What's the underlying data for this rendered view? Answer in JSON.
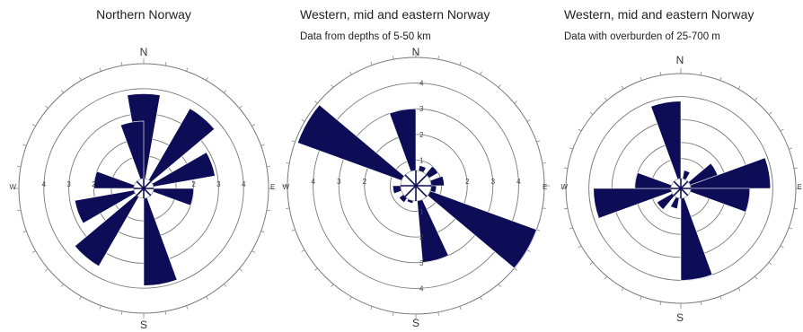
{
  "colors": {
    "petal": "#0d0d57",
    "ring": "#7a7a7a",
    "text": "#222222"
  },
  "chart_data": [
    {
      "type": "rose",
      "title": "Northern Norway",
      "subtitle": "",
      "cardinals": {
        "n": "N",
        "s": "S",
        "e": "E",
        "w": "W"
      },
      "ring_labels_h": [
        "4",
        "3",
        "2",
        "2",
        "3",
        "4"
      ],
      "ring_labels_v": [],
      "rings": [
        1.3,
        2,
        3,
        4
      ],
      "rmax": 5,
      "bin_width_deg": 20,
      "petals": [
        {
          "azimuth": 0,
          "r": 3.8
        },
        {
          "azimuth": 40,
          "r": 3.7
        },
        {
          "azimuth": 70,
          "r": 2.9
        },
        {
          "azimuth": 100,
          "r": 2.0
        },
        {
          "azimuth": 170,
          "r": 3.9
        },
        {
          "azimuth": 220,
          "r": 3.6
        },
        {
          "azimuth": 250,
          "r": 2.8
        },
        {
          "azimuth": 280,
          "r": 2.0
        },
        {
          "azimuth": 350,
          "r": 2.7
        }
      ]
    },
    {
      "type": "rose",
      "title": "Western, mid and eastern Norway",
      "subtitle": "Data from depths of 5-50 km",
      "cardinals": {
        "n": "N",
        "s": "S",
        "e": "E",
        "w": "W"
      },
      "ring_labels_h": [
        "4",
        "3",
        "2",
        "2",
        "3",
        "4"
      ],
      "ring_labels_v": [
        "4",
        "3",
        "2",
        "1",
        "1",
        "2",
        "3",
        "4"
      ],
      "rings": [
        1,
        2,
        3,
        4
      ],
      "rmax": 5,
      "bin_width_deg": 20,
      "petals": [
        {
          "azimuth": 350,
          "r": 3.0
        },
        {
          "azimuth": 300,
          "r": 4.9
        },
        {
          "azimuth": 120,
          "r": 5.0
        },
        {
          "azimuth": 165,
          "r": 3.0
        },
        {
          "azimuth": 260,
          "r": 0.9
        },
        {
          "azimuth": 20,
          "r": 0.8
        },
        {
          "azimuth": 50,
          "r": 1.0
        },
        {
          "azimuth": 80,
          "r": 1.1
        },
        {
          "azimuth": 100,
          "r": 0.8
        },
        {
          "azimuth": 200,
          "r": 0.7
        },
        {
          "azimuth": 225,
          "r": 0.8
        }
      ]
    },
    {
      "type": "rose",
      "title": "Western, mid and eastern Norway",
      "subtitle": "Data with overburden of 25-700 m",
      "cardinals": {
        "n": "N",
        "s": "S",
        "e": "E",
        "w": "W"
      },
      "ring_labels_h": [],
      "ring_labels_v": [],
      "rings": [
        1.3,
        2,
        3,
        4
      ],
      "rmax": 5,
      "bin_width_deg": 20,
      "petals": [
        {
          "azimuth": 350,
          "r": 3.8
        },
        {
          "azimuth": 170,
          "r": 4.0
        },
        {
          "azimuth": 80,
          "r": 3.9
        },
        {
          "azimuth": 100,
          "r": 3.0
        },
        {
          "azimuth": 60,
          "r": 1.7
        },
        {
          "azimuth": 260,
          "r": 3.8
        },
        {
          "azimuth": 280,
          "r": 2.0
        },
        {
          "azimuth": 230,
          "r": 1.2
        },
        {
          "azimuth": 200,
          "r": 0.9
        },
        {
          "azimuth": 20,
          "r": 0.8
        }
      ]
    }
  ]
}
